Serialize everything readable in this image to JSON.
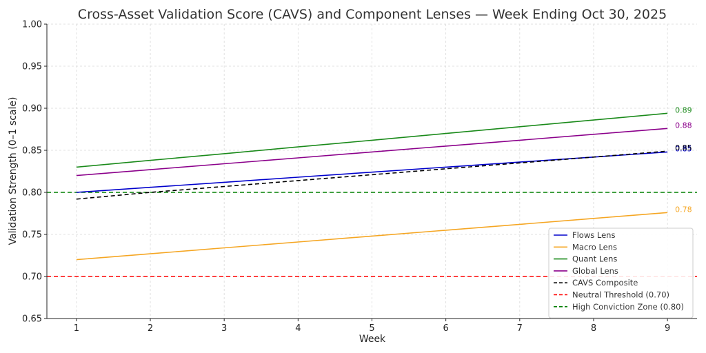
{
  "chart_data": {
    "type": "line",
    "title": "Cross-Asset Validation Score (CAVS) and Component Lenses — Week Ending Oct 30, 2025",
    "xlabel": "Week",
    "ylabel": "Validation Strength (0–1 scale)",
    "x": [
      1,
      2,
      3,
      4,
      5,
      6,
      7,
      8,
      9
    ],
    "xlim": [
      0.6,
      9.4
    ],
    "ylim": [
      0.65,
      1.0
    ],
    "x_ticks": [
      1,
      2,
      3,
      4,
      5,
      6,
      7,
      8,
      9
    ],
    "y_ticks": [
      "0.65",
      "0.70",
      "0.75",
      "0.80",
      "0.85",
      "0.90",
      "0.95",
      "1.00"
    ],
    "grid": true,
    "legend_position": "lower-right",
    "series": [
      {
        "name": "Flows Lens",
        "color": "#0000cc",
        "dash": "solid",
        "values": [
          0.8,
          0.806,
          0.812,
          0.818,
          0.824,
          0.83,
          0.836,
          0.842,
          0.848
        ],
        "end_label": "0.85"
      },
      {
        "name": "Macro Lens",
        "color": "#f5a623",
        "dash": "solid",
        "values": [
          0.72,
          0.727,
          0.734,
          0.741,
          0.748,
          0.755,
          0.762,
          0.769,
          0.776
        ],
        "end_label": "0.78"
      },
      {
        "name": "Quant Lens",
        "color": "#1a8a1a",
        "dash": "solid",
        "values": [
          0.83,
          0.838,
          0.846,
          0.854,
          0.862,
          0.87,
          0.878,
          0.886,
          0.894
        ],
        "end_label": "0.89"
      },
      {
        "name": "Global Lens",
        "color": "#8b008b",
        "dash": "solid",
        "values": [
          0.82,
          0.827,
          0.834,
          0.841,
          0.848,
          0.855,
          0.862,
          0.869,
          0.876
        ],
        "end_label": "0.88"
      },
      {
        "name": "CAVS Composite",
        "color": "#000000",
        "dash": "dashed",
        "values": [
          0.792,
          0.8,
          0.807,
          0.814,
          0.821,
          0.828,
          0.835,
          0.842,
          0.849
        ],
        "end_label": "0.85"
      }
    ],
    "reference_lines": [
      {
        "name": "Neutral Threshold (0.70)",
        "y": 0.7,
        "color": "#ff0000"
      },
      {
        "name": "High Conviction Zone (0.80)",
        "y": 0.8,
        "color": "#008000"
      }
    ]
  }
}
